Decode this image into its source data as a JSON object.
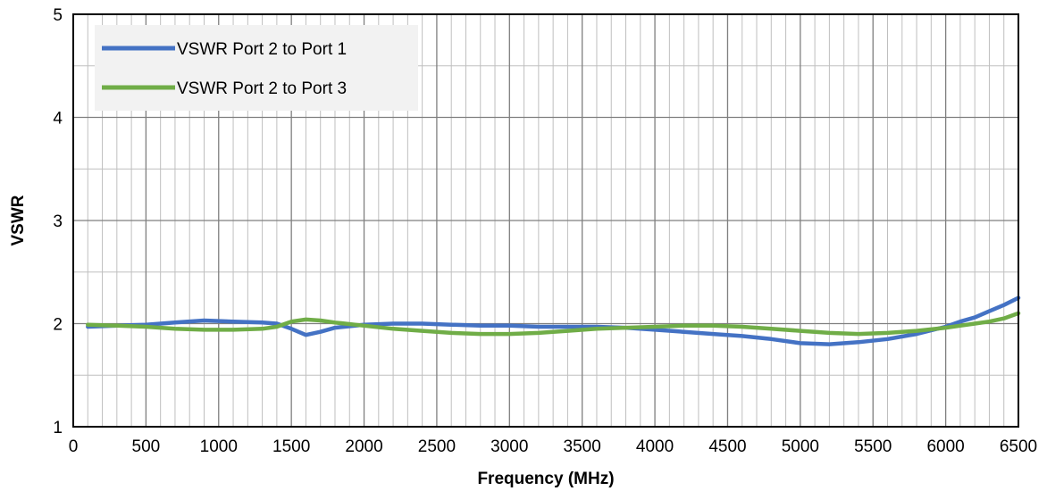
{
  "chart_data": {
    "type": "line",
    "title": "",
    "xlabel": "Frequency (MHz)",
    "ylabel": "VSWR",
    "xlim": [
      0,
      6500
    ],
    "ylim": [
      1,
      5
    ],
    "x_ticks": [
      0,
      500,
      1000,
      1500,
      2000,
      2500,
      3000,
      3500,
      4000,
      4500,
      5000,
      5500,
      6000,
      6500
    ],
    "x_tick_labels": [
      "0",
      "500",
      "1000",
      "1500",
      "2000",
      "2500",
      "3000",
      "3500",
      "4000",
      "4500",
      "5000",
      "5500",
      "6000",
      "6500"
    ],
    "y_ticks": [
      1,
      2,
      3,
      4,
      5
    ],
    "y_tick_labels": [
      "1",
      "2",
      "3",
      "4",
      "5"
    ],
    "x_minor_step": 100,
    "y_minor_step": 0.5,
    "grid": true,
    "legend_position": "top-left",
    "series": [
      {
        "name": "VSWR Port 2 to Port 1",
        "color": "#4472C4",
        "x": [
          100,
          300,
          500,
          700,
          900,
          1100,
          1300,
          1400,
          1500,
          1600,
          1700,
          1800,
          2000,
          2200,
          2400,
          2600,
          2800,
          3000,
          3200,
          3400,
          3600,
          3800,
          4000,
          4200,
          4400,
          4600,
          4800,
          5000,
          5200,
          5400,
          5600,
          5800,
          6000,
          6100,
          6200,
          6300,
          6400,
          6500
        ],
        "y": [
          1.97,
          1.98,
          1.99,
          2.01,
          2.03,
          2.02,
          2.01,
          2.0,
          1.95,
          1.89,
          1.92,
          1.96,
          1.99,
          2.0,
          2.0,
          1.99,
          1.98,
          1.98,
          1.97,
          1.97,
          1.97,
          1.96,
          1.94,
          1.92,
          1.9,
          1.88,
          1.85,
          1.81,
          1.8,
          1.82,
          1.85,
          1.9,
          1.97,
          2.02,
          2.06,
          2.12,
          2.18,
          2.25
        ]
      },
      {
        "name": "VSWR Port 2 to Port 3",
        "color": "#70AD47",
        "x": [
          100,
          300,
          500,
          700,
          900,
          1100,
          1300,
          1400,
          1500,
          1600,
          1700,
          1800,
          2000,
          2200,
          2400,
          2600,
          2800,
          3000,
          3200,
          3400,
          3600,
          3800,
          4000,
          4200,
          4400,
          4600,
          4800,
          5000,
          5200,
          5400,
          5600,
          5800,
          6000,
          6100,
          6200,
          6300,
          6400,
          6500
        ],
        "y": [
          1.99,
          1.98,
          1.97,
          1.95,
          1.94,
          1.94,
          1.95,
          1.97,
          2.02,
          2.04,
          2.03,
          2.01,
          1.98,
          1.95,
          1.93,
          1.91,
          1.9,
          1.9,
          1.91,
          1.93,
          1.95,
          1.96,
          1.97,
          1.98,
          1.98,
          1.97,
          1.95,
          1.93,
          1.91,
          1.9,
          1.91,
          1.93,
          1.96,
          1.98,
          2.0,
          2.02,
          2.05,
          2.1
        ]
      }
    ]
  }
}
